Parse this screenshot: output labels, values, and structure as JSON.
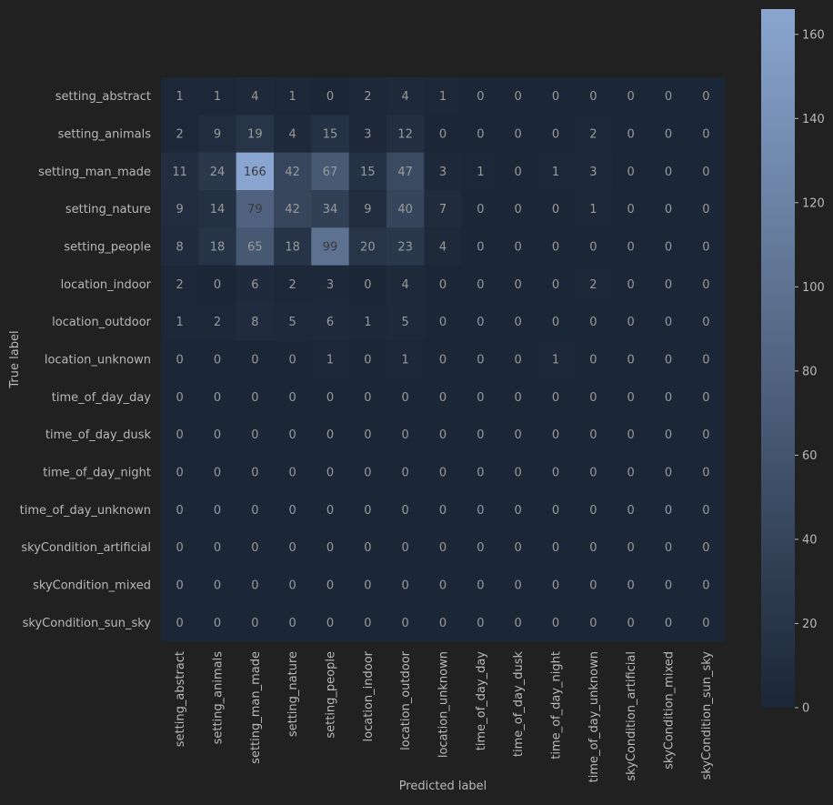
{
  "chart_data": {
    "type": "heatmap",
    "title": "",
    "xlabel": "Predicted label",
    "ylabel": "True label",
    "labels": [
      "setting_abstract",
      "setting_animals",
      "setting_man_made",
      "setting_nature",
      "setting_people",
      "location_indoor",
      "location_outdoor",
      "location_unknown",
      "time_of_day_day",
      "time_of_day_dusk",
      "time_of_day_night",
      "time_of_day_unknown",
      "skyCondition_artificial",
      "skyCondition_mixed",
      "skyCondition_sun_sky"
    ],
    "matrix": [
      [
        1,
        1,
        4,
        1,
        0,
        2,
        4,
        1,
        0,
        0,
        0,
        0,
        0,
        0,
        0
      ],
      [
        2,
        9,
        19,
        4,
        15,
        3,
        12,
        0,
        0,
        0,
        0,
        2,
        0,
        0,
        0
      ],
      [
        11,
        24,
        166,
        42,
        67,
        15,
        47,
        3,
        1,
        0,
        1,
        3,
        0,
        0,
        0
      ],
      [
        9,
        14,
        79,
        42,
        34,
        9,
        40,
        7,
        0,
        0,
        0,
        1,
        0,
        0,
        0
      ],
      [
        8,
        18,
        65,
        18,
        99,
        20,
        23,
        4,
        0,
        0,
        0,
        0,
        0,
        0,
        0
      ],
      [
        2,
        0,
        6,
        2,
        3,
        0,
        4,
        0,
        0,
        0,
        0,
        2,
        0,
        0,
        0
      ],
      [
        1,
        2,
        8,
        5,
        6,
        1,
        5,
        0,
        0,
        0,
        0,
        0,
        0,
        0,
        0
      ],
      [
        0,
        0,
        0,
        0,
        1,
        0,
        1,
        0,
        0,
        0,
        1,
        0,
        0,
        0,
        0
      ],
      [
        0,
        0,
        0,
        0,
        0,
        0,
        0,
        0,
        0,
        0,
        0,
        0,
        0,
        0,
        0
      ],
      [
        0,
        0,
        0,
        0,
        0,
        0,
        0,
        0,
        0,
        0,
        0,
        0,
        0,
        0,
        0
      ],
      [
        0,
        0,
        0,
        0,
        0,
        0,
        0,
        0,
        0,
        0,
        0,
        0,
        0,
        0,
        0
      ],
      [
        0,
        0,
        0,
        0,
        0,
        0,
        0,
        0,
        0,
        0,
        0,
        0,
        0,
        0,
        0
      ],
      [
        0,
        0,
        0,
        0,
        0,
        0,
        0,
        0,
        0,
        0,
        0,
        0,
        0,
        0,
        0
      ],
      [
        0,
        0,
        0,
        0,
        0,
        0,
        0,
        0,
        0,
        0,
        0,
        0,
        0,
        0,
        0
      ],
      [
        0,
        0,
        0,
        0,
        0,
        0,
        0,
        0,
        0,
        0,
        0,
        0,
        0,
        0,
        0
      ]
    ],
    "colorbar": {
      "min": 0,
      "max": 166,
      "ticks": [
        0,
        20,
        40,
        60,
        80,
        100,
        120,
        140,
        160
      ],
      "color_low": "#1b2636",
      "color_high": "#8aa5cf"
    },
    "grid": false,
    "legend": "colorbar-right"
  },
  "colors": {
    "background": "#212121",
    "text": "#b8b8b8",
    "cell_text": "#9a9a9a"
  }
}
